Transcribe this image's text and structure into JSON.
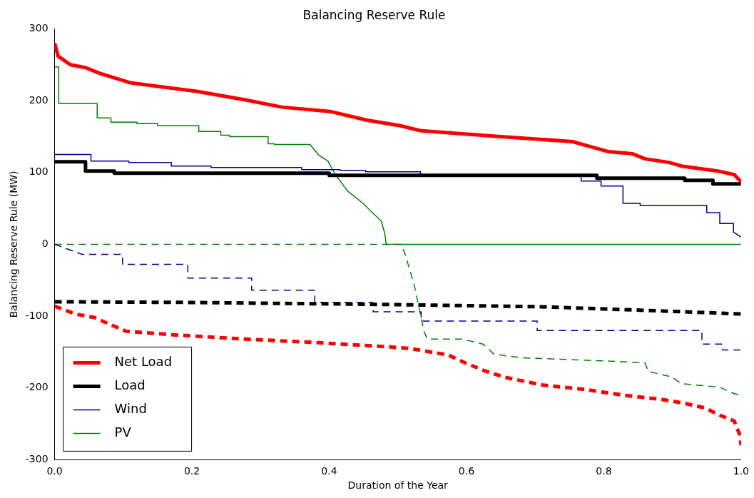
{
  "chart_data": {
    "type": "line",
    "title": "Balancing Reserve Rule",
    "xlabel": "Duration of the Year",
    "ylabel": "Balancing Reserve Rule (MW)",
    "xlim": [
      0,
      1
    ],
    "ylim": [
      -300,
      300
    ],
    "xticks": [
      {
        "value": 0,
        "label": "0.0"
      },
      {
        "value": 0.2,
        "label": "0.2"
      },
      {
        "value": 0.4,
        "label": "0.4"
      },
      {
        "value": 0.6,
        "label": "0.6"
      },
      {
        "value": 0.8,
        "label": "0.8"
      },
      {
        "value": 1,
        "label": "1.0"
      }
    ],
    "yticks": [
      -300,
      -200,
      -100,
      0,
      100,
      200,
      300
    ],
    "grid": false,
    "legend": "bottom left",
    "marker": "none",
    "series": [
      {
        "name": "Net Load",
        "color": "#ff0000",
        "line_style": "solid",
        "x": [
          0,
          0.005,
          0.023,
          0.045,
          0.066,
          0.11,
          0.207,
          0.278,
          0.331,
          0.401,
          0.454,
          0.504,
          0.534,
          0.65,
          0.754,
          0.807,
          0.842,
          0.86,
          0.895,
          0.913,
          0.966,
          0.99,
          1
        ],
        "values": [
          280,
          262,
          250,
          246,
          238,
          225,
          213,
          201,
          191,
          185,
          173,
          165,
          158,
          150,
          143,
          129,
          126,
          119,
          114,
          109,
          102,
          97,
          87
        ]
      },
      {
        "name": "Load",
        "color": "#000000",
        "line_style": "solid",
        "x": [
          0,
          0.045,
          0.045,
          0.087,
          0.087,
          0.4,
          0.4,
          0.79,
          0.79,
          0.918,
          0.918,
          0.959,
          0.959,
          1
        ],
        "values": [
          115,
          115,
          102,
          102,
          99,
          99,
          96,
          96,
          92,
          92,
          89,
          89,
          84,
          84
        ]
      },
      {
        "name": "Wind",
        "color": "#00008b",
        "line_style": "solid",
        "x": [
          0,
          0.053,
          0.053,
          0.108,
          0.108,
          0.17,
          0.17,
          0.228,
          0.228,
          0.36,
          0.36,
          0.416,
          0.416,
          0.453,
          0.453,
          0.533,
          0.533,
          0.767,
          0.767,
          0.796,
          0.796,
          0.828,
          0.828,
          0.853,
          0.853,
          0.95,
          0.95,
          0.969,
          0.969,
          0.989,
          0.989,
          1
        ],
        "values": [
          125,
          125,
          116,
          116,
          114,
          114,
          109,
          109,
          107,
          107,
          104,
          104,
          103,
          103,
          101,
          101,
          95,
          95,
          88,
          88,
          81,
          81,
          57,
          57,
          54,
          54,
          44,
          44,
          29,
          29,
          17,
          10
        ]
      },
      {
        "name": "PV",
        "color": "#008000",
        "line_style": "solid",
        "x": [
          0,
          0.006,
          0.006,
          0.062,
          0.062,
          0.082,
          0.082,
          0.12,
          0.12,
          0.15,
          0.15,
          0.21,
          0.21,
          0.242,
          0.242,
          0.255,
          0.255,
          0.311,
          0.311,
          0.32,
          0.32,
          0.372,
          0.385,
          0.398,
          0.409,
          0.427,
          0.448,
          0.476,
          0.481,
          0.483,
          1
        ],
        "values": [
          247,
          247,
          196,
          196,
          176,
          176,
          170,
          170,
          168,
          168,
          165,
          165,
          157,
          157,
          152,
          152,
          150,
          150,
          140,
          140,
          139,
          139,
          124,
          116,
          97,
          74,
          58,
          32,
          15,
          0,
          0
        ]
      },
      {
        "color": "#ff0000",
        "line_style": "dashed",
        "x": [
          0,
          0.03,
          0.058,
          0.082,
          0.104,
          0.172,
          0.278,
          0.384,
          0.49,
          0.517,
          0.573,
          0.598,
          0.626,
          0.655,
          0.711,
          0.772,
          0.828,
          0.884,
          0.916,
          0.948,
          0.969,
          0.99,
          0.998,
          1
        ],
        "values": [
          -86,
          -97,
          -102,
          -112,
          -121,
          -126,
          -132,
          -137,
          -143,
          -145,
          -154,
          -165,
          -176,
          -185,
          -196,
          -202,
          -210,
          -216,
          -221,
          -228,
          -238,
          -246,
          -265,
          -280
        ]
      },
      {
        "color": "#000000",
        "line_style": "dashed",
        "x": [
          0,
          0.2,
          0.5,
          0.708,
          0.83,
          0.918,
          1
        ],
        "values": [
          -80,
          -81,
          -84,
          -87,
          -91,
          -94,
          -97
        ]
      },
      {
        "color": "#00008b",
        "line_style": "dashed",
        "x": [
          0,
          0.04,
          0.099,
          0.099,
          0.194,
          0.194,
          0.287,
          0.287,
          0.379,
          0.379,
          0.464,
          0.464,
          0.534,
          0.534,
          0.703,
          0.703,
          0.943,
          0.943,
          0.973,
          0.973,
          1
        ],
        "values": [
          0,
          -14,
          -14,
          -28,
          -28,
          -47,
          -47,
          -64,
          -64,
          -81,
          -81,
          -94,
          -94,
          -107,
          -107,
          -120,
          -120,
          -139,
          -139,
          -147,
          -147
        ]
      },
      {
        "color": "#008000",
        "line_style": "dashed",
        "x": [
          0,
          0.505,
          0.51,
          0.524,
          0.538,
          0.543,
          0.594,
          0.624,
          0.64,
          0.68,
          0.817,
          0.86,
          0.865,
          0.9,
          0.913,
          0.969,
          0.99,
          1
        ],
        "values": [
          0,
          0,
          -12,
          -57,
          -121,
          -132,
          -132,
          -139,
          -153,
          -158,
          -163,
          -165,
          -177,
          -185,
          -194,
          -199,
          -208,
          -210
        ]
      }
    ]
  }
}
